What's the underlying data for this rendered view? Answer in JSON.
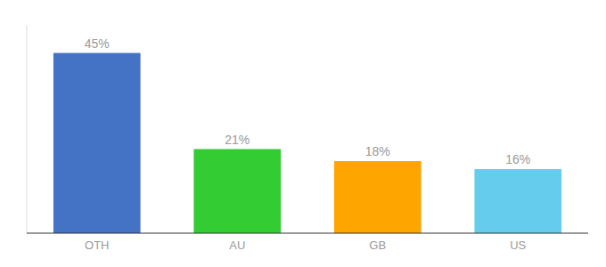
{
  "chart_data": {
    "type": "bar",
    "categories": [
      "OTH",
      "AU",
      "GB",
      "US"
    ],
    "values": [
      45,
      21,
      18,
      16
    ],
    "value_labels": [
      "45%",
      "21%",
      "18%",
      "16%"
    ],
    "colors": [
      "#4472C4",
      "#33CC33",
      "#FFA500",
      "#66CCEE"
    ],
    "ylim": [
      0,
      52
    ],
    "data_labels": true,
    "tick_labels": "x",
    "grid": false
  }
}
